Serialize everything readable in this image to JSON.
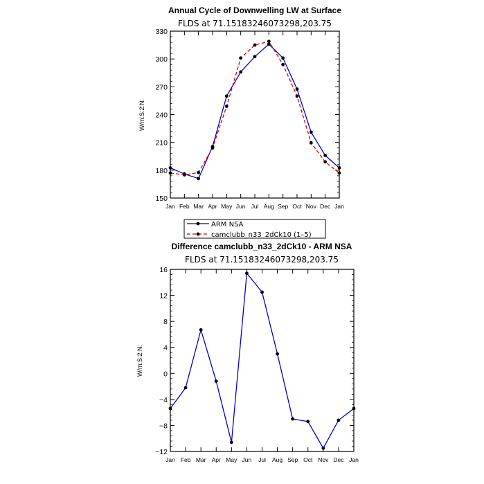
{
  "chart_data": [
    {
      "type": "line",
      "title": "Annual Cycle of Downwelling LW at Surface",
      "subtitle": "FLDS at 71.15183246073298,203.75",
      "ylabel": "W/m:S:2:N:",
      "ylim": [
        150,
        330
      ],
      "yticks": [
        150,
        180,
        210,
        240,
        270,
        300,
        330
      ],
      "categories": [
        "Jan",
        "Feb",
        "Mar",
        "Apr",
        "May",
        "Jun",
        "Jul",
        "Aug",
        "Sep",
        "Oct",
        "Nov",
        "Dec",
        "Jan"
      ],
      "series": [
        {
          "name": "ARM NSA",
          "color": "#0000cc",
          "dash": "solid",
          "values": [
            182.5,
            176,
            171,
            205.5,
            260,
            286,
            302.5,
            316,
            301,
            267.5,
            221,
            196,
            182.5
          ]
        },
        {
          "name": "camclubb_n33_2dCk10 (1–5)",
          "color": "#dd0000",
          "dash": "dashed",
          "values": [
            177,
            175,
            177.5,
            204,
            249,
            301,
            315,
            319,
            294,
            260,
            209.5,
            189,
            177
          ]
        }
      ],
      "legend": "bottom"
    },
    {
      "type": "line",
      "title": "Difference camclubb_n33_2dCk10 - ARM NSA",
      "subtitle": "FLDS at 71.15183246073298,203.75",
      "ylabel": "W/m:S:2:N:",
      "ylim": [
        -12,
        16
      ],
      "yticks": [
        -12,
        -8,
        -4,
        0,
        4,
        8,
        12,
        16
      ],
      "yticklabels": [
        "−12",
        "−8",
        "−4",
        "0",
        "4",
        "8",
        "12",
        "16"
      ],
      "categories": [
        "Jan",
        "Feb",
        "Mar",
        "Apr",
        "May",
        "Jun",
        "Jul",
        "Aug",
        "Sep",
        "Oct",
        "Nov",
        "Dec",
        "Jan"
      ],
      "series": [
        {
          "color": "#0000cc",
          "values": [
            -5.4,
            -2.2,
            6.7,
            -1.2,
            -10.6,
            15.4,
            12.5,
            3.0,
            -7.0,
            -7.4,
            -11.5,
            -7.2,
            -5.4
          ]
        }
      ]
    }
  ]
}
